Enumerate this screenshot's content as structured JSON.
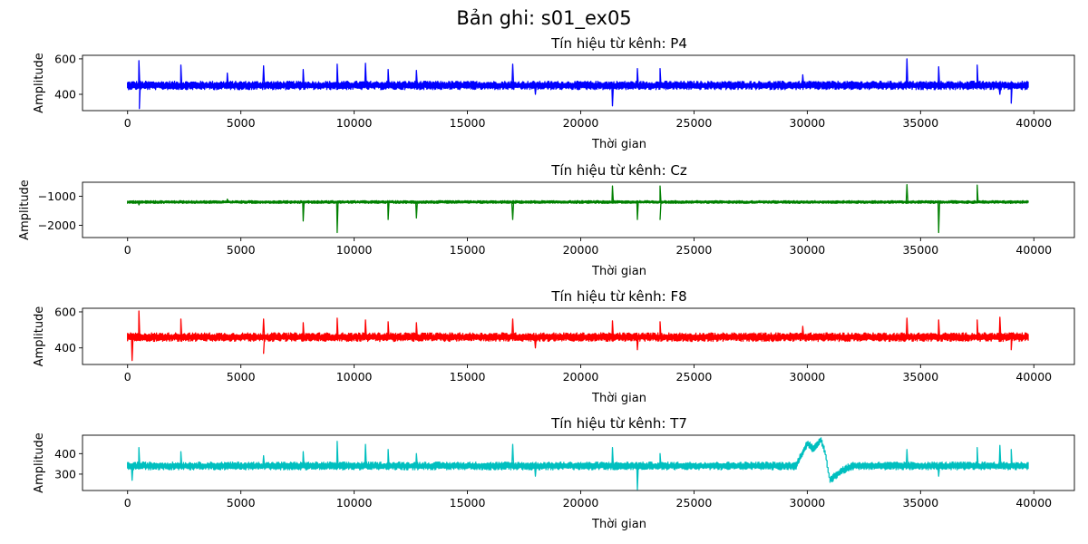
{
  "figure": {
    "title": "Bản ghi: s01_ex05"
  },
  "chart_data": [
    {
      "type": "line",
      "title": "Tín hiệu từ kênh: P4",
      "xlabel": "Thời gian",
      "ylabel": "Amplitude",
      "color": "#0000ff",
      "xlim": [
        -1990,
        41790
      ],
      "ylim": [
        308,
        620
      ],
      "xticks": [
        0,
        5000,
        10000,
        15000,
        20000,
        25000,
        30000,
        35000,
        40000
      ],
      "yticks": [
        400,
        600
      ],
      "x_range": [
        0,
        39750
      ],
      "baseline": 450,
      "noise": 15,
      "spikes": [
        [
          500,
          590
        ],
        [
          520,
          320
        ],
        [
          2350,
          565
        ],
        [
          4400,
          520
        ],
        [
          6000,
          560
        ],
        [
          7750,
          540
        ],
        [
          9250,
          570
        ],
        [
          10500,
          575
        ],
        [
          11500,
          540
        ],
        [
          12750,
          535
        ],
        [
          17000,
          570
        ],
        [
          18000,
          400
        ],
        [
          21400,
          335
        ],
        [
          22500,
          545
        ],
        [
          23500,
          545
        ],
        [
          29800,
          510
        ],
        [
          34400,
          600
        ],
        [
          35800,
          555
        ],
        [
          37500,
          565
        ],
        [
          38500,
          400
        ],
        [
          39000,
          350
        ]
      ],
      "grid": false
    },
    {
      "type": "line",
      "title": "Tín hiệu từ kênh: Cz",
      "xlabel": "Thời gian",
      "ylabel": "Amplitude",
      "color": "#008000",
      "xlim": [
        -1990,
        41790
      ],
      "ylim": [
        -2420,
        -520
      ],
      "xticks": [
        0,
        5000,
        10000,
        15000,
        20000,
        25000,
        30000,
        35000,
        40000
      ],
      "yticks": [
        -2000,
        -1000
      ],
      "x_range": [
        0,
        39750
      ],
      "baseline": -1200,
      "noise": 30,
      "spikes": [
        [
          500,
          -1300
        ],
        [
          4400,
          -1100
        ],
        [
          7750,
          -1850
        ],
        [
          9250,
          -2250
        ],
        [
          11500,
          -1800
        ],
        [
          12750,
          -1750
        ],
        [
          17000,
          -1800
        ],
        [
          21400,
          -650
        ],
        [
          22500,
          -1800
        ],
        [
          23500,
          -650
        ],
        [
          23500,
          -1800
        ],
        [
          34400,
          -600
        ],
        [
          35800,
          -2250
        ],
        [
          37500,
          -620
        ]
      ],
      "grid": false
    },
    {
      "type": "line",
      "title": "Tín hiệu từ kênh: F8",
      "xlabel": "Thời gian",
      "ylabel": "Amplitude",
      "color": "#ff0000",
      "xlim": [
        -1990,
        41790
      ],
      "ylim": [
        308,
        620
      ],
      "xticks": [
        0,
        5000,
        10000,
        15000,
        20000,
        25000,
        30000,
        35000,
        40000
      ],
      "yticks": [
        400,
        600
      ],
      "x_range": [
        0,
        39750
      ],
      "baseline": 460,
      "noise": 15,
      "spikes": [
        [
          500,
          605
        ],
        [
          200,
          330
        ],
        [
          2350,
          560
        ],
        [
          6000,
          560
        ],
        [
          6000,
          370
        ],
        [
          7750,
          540
        ],
        [
          9250,
          565
        ],
        [
          10500,
          555
        ],
        [
          11500,
          545
        ],
        [
          12750,
          540
        ],
        [
          17000,
          560
        ],
        [
          18000,
          400
        ],
        [
          21400,
          550
        ],
        [
          22500,
          390
        ],
        [
          23500,
          545
        ],
        [
          29800,
          520
        ],
        [
          34400,
          565
        ],
        [
          35800,
          555
        ],
        [
          37500,
          555
        ],
        [
          38500,
          570
        ],
        [
          39000,
          390
        ]
      ],
      "grid": false
    },
    {
      "type": "line",
      "title": "Tín hiệu từ kênh: T7",
      "xlabel": "Thời gian",
      "ylabel": "Amplitude",
      "color": "#00bfbf",
      "xlim": [
        -1990,
        41790
      ],
      "ylim": [
        220,
        490
      ],
      "xticks": [
        0,
        5000,
        10000,
        15000,
        20000,
        25000,
        30000,
        35000,
        40000
      ],
      "yticks": [
        300,
        400
      ],
      "x_range": [
        0,
        39750
      ],
      "baseline": 340,
      "noise": 12,
      "spikes": [
        [
          500,
          430
        ],
        [
          200,
          270
        ],
        [
          2350,
          410
        ],
        [
          6000,
          390
        ],
        [
          7750,
          410
        ],
        [
          9250,
          460
        ],
        [
          10500,
          445
        ],
        [
          11500,
          420
        ],
        [
          12750,
          400
        ],
        [
          17000,
          445
        ],
        [
          18000,
          290
        ],
        [
          21400,
          430
        ],
        [
          22500,
          225
        ],
        [
          23500,
          400
        ],
        [
          34400,
          420
        ],
        [
          35800,
          290
        ],
        [
          37500,
          430
        ],
        [
          38500,
          440
        ],
        [
          39000,
          420
        ]
      ],
      "drift": [
        [
          29500,
          340
        ],
        [
          30000,
          450
        ],
        [
          30300,
          420
        ],
        [
          30600,
          470
        ],
        [
          30800,
          400
        ],
        [
          31000,
          270
        ],
        [
          31200,
          290
        ],
        [
          31600,
          320
        ],
        [
          32000,
          340
        ]
      ],
      "grid": false
    }
  ]
}
